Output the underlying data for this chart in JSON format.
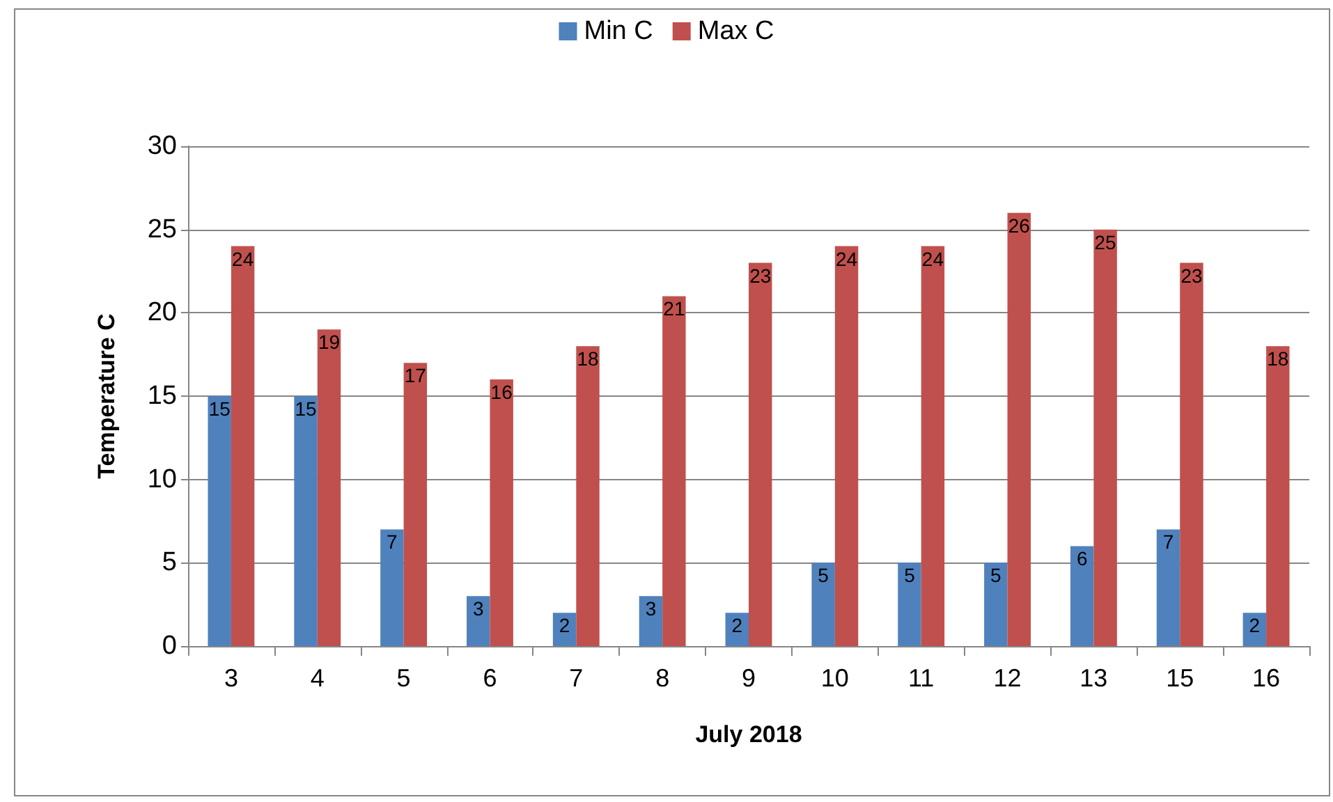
{
  "chart_data": {
    "type": "bar",
    "xlabel": "July 2018",
    "ylabel": "Temperature C",
    "categories": [
      "3",
      "4",
      "5",
      "6",
      "7",
      "8",
      "9",
      "10",
      "11",
      "12",
      "13",
      "15",
      "16"
    ],
    "series": [
      {
        "name": "Min C",
        "color": "#4f81bd",
        "values": [
          15,
          15,
          7,
          3,
          2,
          3,
          2,
          5,
          5,
          5,
          6,
          7,
          2
        ]
      },
      {
        "name": "Max C",
        "color": "#c0504d",
        "values": [
          24,
          19,
          17,
          16,
          18,
          21,
          23,
          24,
          24,
          26,
          25,
          23,
          18
        ]
      }
    ],
    "ylim": [
      0,
      30
    ],
    "yticks": [
      0,
      5,
      10,
      15,
      20,
      25,
      30
    ],
    "grid": "y",
    "legend": "top",
    "data_labels": true
  }
}
